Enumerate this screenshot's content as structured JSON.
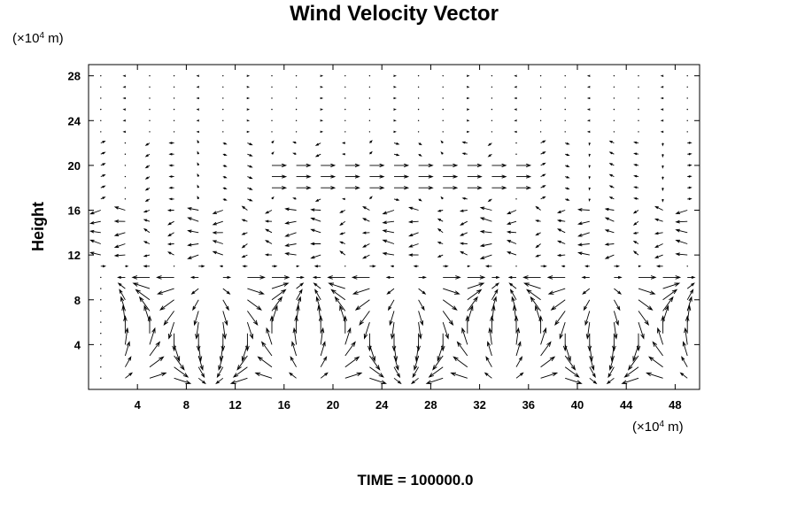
{
  "chart_data": {
    "type": "vector_field",
    "title": "Wind Velocity Vector",
    "ylabel": "Height",
    "x_unit": {
      "prefix": "(×10",
      "exponent": "4",
      "suffix": " m)"
    },
    "y_unit": {
      "prefix": "(×10",
      "exponent": "4",
      "suffix": " m)"
    },
    "xlim": [
      0,
      50
    ],
    "ylim": [
      0,
      29
    ],
    "x_ticks": [
      4,
      8,
      12,
      16,
      20,
      24,
      28,
      32,
      36,
      40,
      44,
      48
    ],
    "y_ticks": [
      4,
      8,
      12,
      16,
      20,
      24,
      28
    ],
    "grid_step": {
      "x": 2,
      "y": 1
    },
    "field": {
      "upper_jet": {
        "x_range": [
          14,
          36
        ],
        "y_range": [
          18,
          20
        ],
        "u": 1.5
      },
      "mid_return": {
        "y_range": [
          12,
          16
        ],
        "u": -1.2
      },
      "cells_center_x": [
        6,
        14,
        22,
        30,
        38,
        46
      ],
      "cell_half_width": 4,
      "cell_top": 10
    }
  },
  "time_label": "TIME = 100000.0"
}
